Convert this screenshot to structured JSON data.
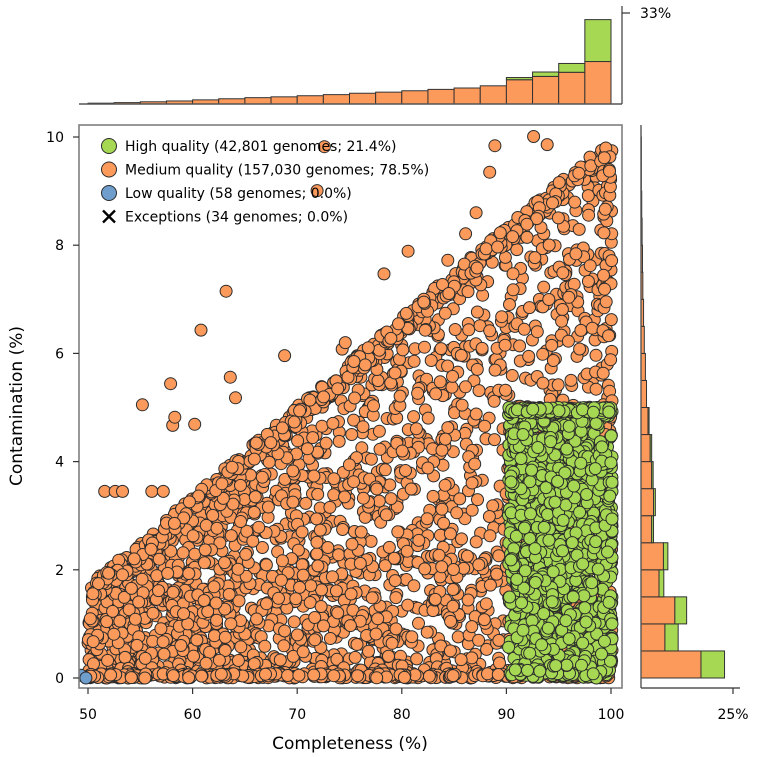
{
  "chart_data": {
    "type": "scatter",
    "xlabel": "Completeness (%)",
    "ylabel": "Contamination (%)",
    "xlim": [
      49,
      101
    ],
    "ylim": [
      -0.2,
      10.2
    ],
    "x_ticks": [
      50,
      60,
      70,
      80,
      90,
      100
    ],
    "y_ticks": [
      0,
      2,
      4,
      6,
      8,
      10
    ],
    "colors": {
      "high": "#a6d854",
      "medium": "#fc9a5b",
      "low": "#6f9ecd",
      "edge": "#2b2b2b",
      "frame": "#7f7f7f"
    },
    "legend": [
      {
        "label": "High quality (42,801 genomes; 21.4%)",
        "marker": "circle",
        "color": "#a6d854"
      },
      {
        "label": "Medium quality (157,030 genomes; 78.5%)",
        "marker": "circle",
        "color": "#fc9a5b"
      },
      {
        "label": "Low quality (58 genomes; 0.0%)",
        "marker": "circle",
        "color": "#6f9ecd"
      },
      {
        "label": "Exceptions (34 genomes; 0.0%)",
        "marker": "x",
        "color": "#000000"
      }
    ],
    "regions": {
      "medium": {
        "x_range": [
          50,
          100
        ],
        "y_max_at_x50": 1.7,
        "y_max_at_x100": 10
      },
      "high": {
        "x_range": [
          90,
          100
        ],
        "y_range": [
          0,
          5
        ]
      },
      "low": {
        "x_range": [
          49,
          50
        ],
        "y_range": [
          0,
          0.1
        ]
      }
    },
    "outliers": [
      [
        55.2,
        5.05
      ],
      [
        57.9,
        5.44
      ],
      [
        58.1,
        4.67
      ],
      [
        58.3,
        4.82
      ],
      [
        60.2,
        4.69
      ],
      [
        60.8,
        6.43
      ],
      [
        63.2,
        7.15
      ],
      [
        63.6,
        5.56
      ],
      [
        64.1,
        5.18
      ],
      [
        68.8,
        5.96
      ],
      [
        72.6,
        9.82
      ],
      [
        71.9,
        9.01
      ],
      [
        74.3,
        6.08
      ],
      [
        74.6,
        6.2
      ],
      [
        78.3,
        7.47
      ],
      [
        80.6,
        7.89
      ],
      [
        84.4,
        7.72
      ],
      [
        86.1,
        8.21
      ],
      [
        87.1,
        8.6
      ],
      [
        88.4,
        9.35
      ],
      [
        88.9,
        9.84
      ],
      [
        92.6,
        10.01
      ],
      [
        93.9,
        9.86
      ],
      [
        51.6,
        3.45
      ],
      [
        52.6,
        3.45
      ],
      [
        53.3,
        3.45
      ],
      [
        56.1,
        3.45
      ],
      [
        57.2,
        3.45
      ]
    ],
    "marginal_top": {
      "bins": [
        "50-52.5",
        "52.5-55",
        "55-57.5",
        "57.5-60",
        "60-62.5",
        "62.5-65",
        "65-67.5",
        "67.5-70",
        "70-72.5",
        "72.5-75",
        "75-77.5",
        "77.5-80",
        "80-82.5",
        "82.5-85",
        "85-87.5",
        "87.5-90",
        "90-92.5",
        "92.5-95",
        "95-97.5",
        "97.5-100"
      ],
      "medium_pct": [
        0.3,
        0.5,
        0.8,
        1.1,
        1.5,
        1.9,
        2.3,
        2.6,
        3.0,
        3.4,
        3.9,
        4.3,
        4.8,
        5.3,
        5.8,
        6.6,
        8.8,
        10.0,
        11.5,
        15.4
      ],
      "high_pct": [
        0,
        0,
        0,
        0,
        0,
        0,
        0,
        0,
        0,
        0,
        0,
        0,
        0,
        0,
        0,
        0,
        0.8,
        1.6,
        3.2,
        15.2
      ],
      "max_tick_label": "33%",
      "max_tick_value": 33
    },
    "marginal_right": {
      "bins": [
        "0-0.5",
        "0.5-1",
        "1-1.5",
        "1.5-2",
        "2-2.5",
        "2.5-3",
        "3-3.5",
        "3.5-4",
        "4-4.5",
        "4.5-5",
        "5-5.5",
        "5.5-6",
        "6-6.5",
        "6.5-7",
        "7-7.5",
        "7.5-8",
        "8-8.5",
        "8.5-9",
        "9-9.5",
        "9.5-10"
      ],
      "medium_pct": [
        16.3,
        6.5,
        9.2,
        4.9,
        6.1,
        2.9,
        3.4,
        2.9,
        2.5,
        1.9,
        1.5,
        1.2,
        0.9,
        0.7,
        0.5,
        0.4,
        0.3,
        0.2,
        0.1,
        0.1
      ],
      "high_pct": [
        6.4,
        3.6,
        3.2,
        1.3,
        1.2,
        0.5,
        0.5,
        0.4,
        0.4,
        0.3,
        0,
        0,
        0,
        0,
        0,
        0,
        0,
        0,
        0,
        0
      ],
      "max_tick_label": "25%",
      "max_tick_value": 25
    }
  }
}
